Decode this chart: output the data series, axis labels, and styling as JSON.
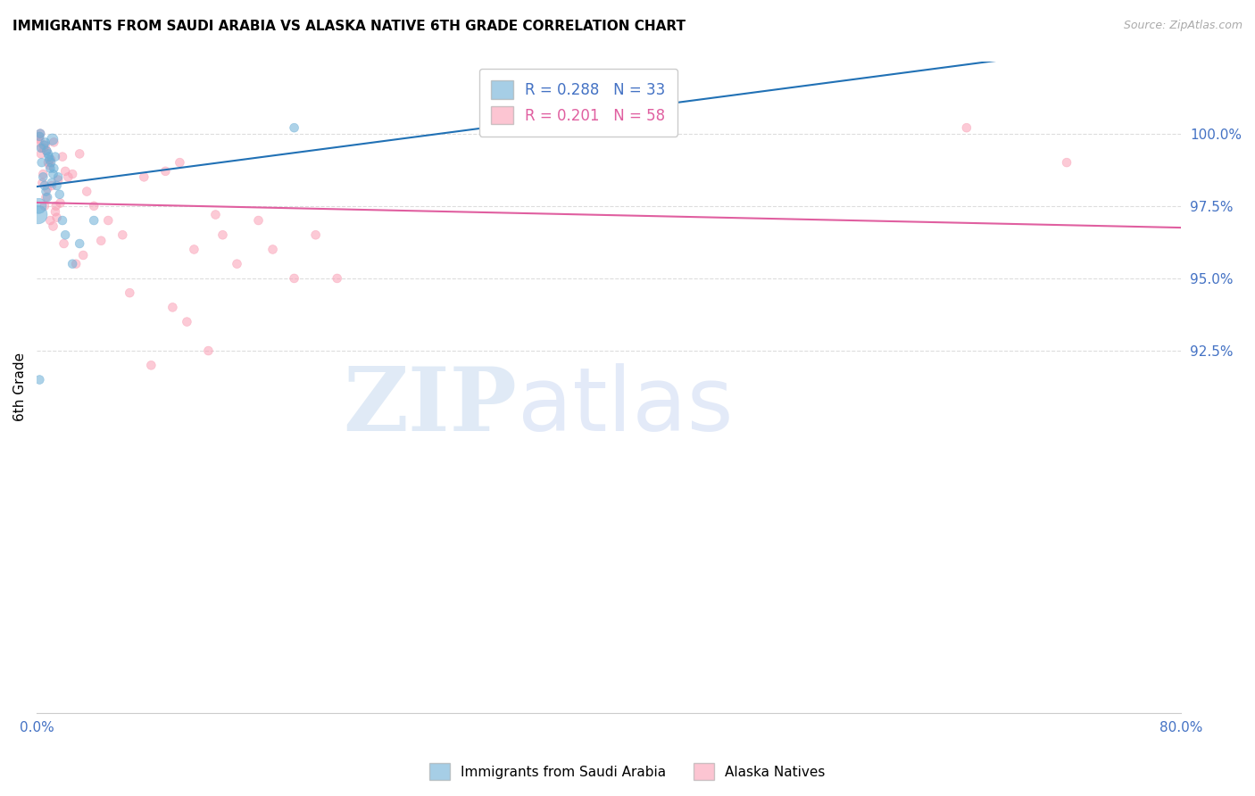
{
  "title": "IMMIGRANTS FROM SAUDI ARABIA VS ALASKA NATIVE 6TH GRADE CORRELATION CHART",
  "source": "Source: ZipAtlas.com",
  "ylabel": "6th Grade",
  "xlim": [
    0.0,
    80.0
  ],
  "ylim": [
    80.0,
    102.5
  ],
  "ytick_values": [
    92.5,
    95.0,
    97.5,
    100.0
  ],
  "xtick_values": [
    0.0,
    10.0,
    20.0,
    30.0,
    40.0,
    50.0,
    60.0,
    70.0,
    80.0
  ],
  "xtick_labels_show": {
    "0.0": "0.0%",
    "80.0": "80.0%"
  },
  "blue_R": 0.288,
  "blue_N": 33,
  "pink_R": 0.201,
  "pink_N": 58,
  "blue_color": "#6baed6",
  "pink_color": "#fa9fb5",
  "blue_line_color": "#2171b5",
  "pink_line_color": "#e05fa0",
  "legend_label_blue": "Immigrants from Saudi Arabia",
  "legend_label_pink": "Alaska Natives",
  "blue_x": [
    0.3,
    0.5,
    0.6,
    0.7,
    0.8,
    0.9,
    1.0,
    1.1,
    1.2,
    1.3,
    1.5,
    0.2,
    0.25,
    0.35,
    0.45,
    0.55,
    0.65,
    0.75,
    0.85,
    0.95,
    1.05,
    1.15,
    0.1,
    0.15,
    1.4,
    1.6,
    1.8,
    2.0,
    2.5,
    3.0,
    4.0,
    18.0,
    0.2
  ],
  "blue_y": [
    99.5,
    99.6,
    99.7,
    99.4,
    99.3,
    99.1,
    99.0,
    99.8,
    98.8,
    99.2,
    98.5,
    99.9,
    100.0,
    99.0,
    98.5,
    98.2,
    98.0,
    97.8,
    99.2,
    98.8,
    98.3,
    98.6,
    97.2,
    97.5,
    98.2,
    97.9,
    97.0,
    96.5,
    95.5,
    96.2,
    97.0,
    100.2,
    91.5
  ],
  "blue_sizes": [
    50,
    50,
    50,
    50,
    50,
    50,
    50,
    80,
    50,
    50,
    50,
    50,
    50,
    50,
    50,
    50,
    50,
    50,
    50,
    50,
    50,
    50,
    220,
    150,
    50,
    50,
    50,
    50,
    50,
    50,
    50,
    50,
    50
  ],
  "pink_x": [
    0.3,
    0.5,
    0.6,
    0.7,
    0.8,
    0.9,
    1.0,
    1.2,
    1.5,
    1.8,
    2.0,
    2.2,
    2.5,
    0.2,
    0.25,
    0.35,
    0.4,
    0.45,
    0.55,
    0.65,
    0.75,
    0.95,
    1.05,
    1.15,
    1.35,
    1.65,
    3.0,
    3.5,
    4.0,
    5.0,
    6.0,
    7.5,
    9.0,
    10.0,
    11.0,
    12.5,
    0.1,
    0.15,
    1.3,
    1.4,
    1.9,
    2.75,
    3.25,
    4.5,
    6.5,
    8.0,
    9.5,
    10.5,
    12.0,
    13.0,
    14.0,
    15.5,
    16.5,
    18.0,
    19.5,
    21.0,
    65.0,
    72.0
  ],
  "pink_y": [
    99.3,
    99.5,
    99.6,
    99.4,
    99.0,
    98.9,
    99.1,
    99.7,
    98.4,
    99.2,
    98.7,
    98.5,
    98.6,
    99.8,
    100.0,
    99.5,
    98.3,
    98.6,
    97.5,
    97.8,
    98.1,
    97.0,
    98.2,
    96.8,
    97.5,
    97.6,
    99.3,
    98.0,
    97.5,
    97.0,
    96.5,
    98.5,
    98.7,
    99.0,
    96.0,
    97.2,
    99.7,
    99.9,
    97.3,
    97.1,
    96.2,
    95.5,
    95.8,
    96.3,
    94.5,
    92.0,
    94.0,
    93.5,
    92.5,
    96.5,
    95.5,
    97.0,
    96.0,
    95.0,
    96.5,
    95.0,
    100.2,
    99.0
  ],
  "pink_sizes": [
    50,
    50,
    50,
    50,
    50,
    50,
    50,
    50,
    50,
    50,
    50,
    50,
    50,
    50,
    50,
    50,
    50,
    50,
    50,
    50,
    50,
    50,
    50,
    50,
    50,
    50,
    50,
    50,
    50,
    50,
    50,
    50,
    50,
    50,
    50,
    50,
    50,
    50,
    50,
    50,
    50,
    50,
    50,
    50,
    50,
    50,
    50,
    50,
    50,
    50,
    50,
    50,
    50,
    50,
    50,
    50,
    50,
    50
  ]
}
